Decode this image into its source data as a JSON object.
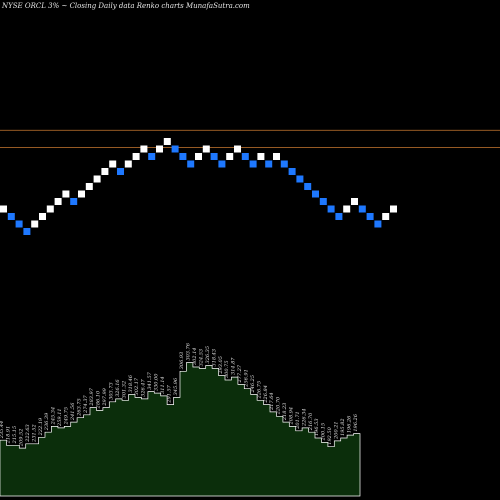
{
  "header": {
    "symbol": "NYSE ORCL 3%",
    "arrow": "~",
    "description": "Closing Daily data",
    "chart_name": "Renko",
    "suffix": "charts",
    "site": "MunafaSutra.com"
  },
  "colors": {
    "background": "#000000",
    "up_brick": "#ffffff",
    "down_brick": "#1e78ff",
    "reference_line": "#c87830",
    "volume_fill": "#0b2e0b",
    "volume_stroke": "#ffffff"
  },
  "chart_data": [
    {
      "type": "renko",
      "brick_size_percent": 3,
      "price_levels": [
        25,
        29.5,
        38.5,
        33.5,
        37.5,
        42.5,
        48.5,
        52.5,
        55,
        51.5,
        49,
        52.5,
        51,
        47.5,
        46,
        44,
        47,
        49,
        46.5,
        49
      ],
      "bricks": [
        {
          "dir": "up",
          "level": 7
        },
        {
          "dir": "down",
          "level": 6
        },
        {
          "dir": "down",
          "level": 5
        },
        {
          "dir": "down",
          "level": 4
        },
        {
          "dir": "up",
          "level": 5
        },
        {
          "dir": "up",
          "level": 6
        },
        {
          "dir": "up",
          "level": 7
        },
        {
          "dir": "up",
          "level": 8
        },
        {
          "dir": "up",
          "level": 9
        },
        {
          "dir": "down",
          "level": 8
        },
        {
          "dir": "up",
          "level": 9
        },
        {
          "dir": "up",
          "level": 10
        },
        {
          "dir": "up",
          "level": 11
        },
        {
          "dir": "up",
          "level": 12
        },
        {
          "dir": "up",
          "level": 13
        },
        {
          "dir": "down",
          "level": 12
        },
        {
          "dir": "up",
          "level": 13
        },
        {
          "dir": "up",
          "level": 14
        },
        {
          "dir": "up",
          "level": 15
        },
        {
          "dir": "down",
          "level": 14
        },
        {
          "dir": "up",
          "level": 15
        },
        {
          "dir": "up",
          "level": 16
        },
        {
          "dir": "down",
          "level": 15
        },
        {
          "dir": "down",
          "level": 14
        },
        {
          "dir": "down",
          "level": 13
        },
        {
          "dir": "up",
          "level": 14
        },
        {
          "dir": "up",
          "level": 15
        },
        {
          "dir": "down",
          "level": 14
        },
        {
          "dir": "down",
          "level": 13
        },
        {
          "dir": "up",
          "level": 14
        },
        {
          "dir": "up",
          "level": 15
        },
        {
          "dir": "down",
          "level": 14
        },
        {
          "dir": "down",
          "level": 13
        },
        {
          "dir": "up",
          "level": 14
        },
        {
          "dir": "down",
          "level": 13
        },
        {
          "dir": "up",
          "level": 14
        },
        {
          "dir": "down",
          "level": 13
        },
        {
          "dir": "down",
          "level": 12
        },
        {
          "dir": "down",
          "level": 11
        },
        {
          "dir": "down",
          "level": 10
        },
        {
          "dir": "down",
          "level": 9
        },
        {
          "dir": "down",
          "level": 8
        },
        {
          "dir": "down",
          "level": 7
        },
        {
          "dir": "down",
          "level": 6
        },
        {
          "dir": "up",
          "level": 7
        },
        {
          "dir": "up",
          "level": 8
        },
        {
          "dir": "down",
          "level": 7
        },
        {
          "dir": "down",
          "level": 6
        },
        {
          "dir": "down",
          "level": 5
        },
        {
          "dir": "up",
          "level": 6
        },
        {
          "dir": "up",
          "level": 7
        }
      ],
      "reference_levels": [
        17.5,
        15.2
      ],
      "volume_labels": [
        {
          "v": 38.5,
          "text": "235.44"
        },
        {
          "v": 35,
          "text": "218.91"
        },
        {
          "v": 35,
          "text": "215.15"
        },
        {
          "v": 33,
          "text": "209.52"
        },
        {
          "v": 36,
          "text": "222.63"
        },
        {
          "v": 36,
          "text": "231.52"
        },
        {
          "v": 40.5,
          "text": "222.19"
        },
        {
          "v": 44,
          "text": "236.39"
        },
        {
          "v": 48,
          "text": "245.34"
        },
        {
          "v": 47,
          "text": "259.11"
        },
        {
          "v": 48,
          "text": "249.75"
        },
        {
          "v": 51,
          "text": "241.56"
        },
        {
          "v": 54,
          "text": "263.75"
        },
        {
          "v": 56,
          "text": "274.37"
        },
        {
          "v": 61,
          "text": "283.97"
        },
        {
          "v": 59,
          "text": "286.10"
        },
        {
          "v": 61,
          "text": "297.99"
        },
        {
          "v": 65,
          "text": "303.73"
        },
        {
          "v": 67,
          "text": "326.16"
        },
        {
          "v": 66,
          "text": "301.32"
        },
        {
          "v": 70,
          "text": "318.46"
        },
        {
          "v": 68,
          "text": "302.17"
        },
        {
          "v": 67,
          "text": "326.47"
        },
        {
          "v": 72,
          "text": "341.57"
        },
        {
          "v": 71,
          "text": "330.00"
        },
        {
          "v": 69,
          "text": "311.14"
        },
        {
          "v": 63,
          "text": "291.57"
        },
        {
          "v": 68,
          "text": "345.96"
        },
        {
          "v": 86,
          "text": "306.93"
        },
        {
          "v": 92,
          "text": "303.76"
        },
        {
          "v": 89,
          "text": "302.14"
        },
        {
          "v": 88,
          "text": "324.53"
        },
        {
          "v": 90,
          "text": "326.35"
        },
        {
          "v": 88,
          "text": "318.43"
        },
        {
          "v": 83,
          "text": "293.05"
        },
        {
          "v": 80,
          "text": "300.75"
        },
        {
          "v": 82,
          "text": "314.87"
        },
        {
          "v": 77,
          "text": "277.27"
        },
        {
          "v": 74,
          "text": "256.91"
        },
        {
          "v": 70,
          "text": "246.25"
        },
        {
          "v": 66,
          "text": "226.75"
        },
        {
          "v": 63,
          "text": "226.84"
        },
        {
          "v": 58,
          "text": "217.64"
        },
        {
          "v": 55,
          "text": "220.70"
        },
        {
          "v": 51,
          "text": "218.23"
        },
        {
          "v": 48,
          "text": "208.94"
        },
        {
          "v": 45,
          "text": "201.71"
        },
        {
          "v": 47,
          "text": "226.34"
        },
        {
          "v": 44,
          "text": "216.70"
        },
        {
          "v": 40,
          "text": "196.53"
        },
        {
          "v": 37,
          "text": "200.15"
        },
        {
          "v": 34,
          "text": "192.50"
        },
        {
          "v": 38,
          "text": "200.21"
        },
        {
          "v": 40,
          "text": "195.82"
        },
        {
          "v": 42,
          "text": "196.26"
        },
        {
          "v": 43,
          "text": "196.26"
        }
      ]
    }
  ]
}
